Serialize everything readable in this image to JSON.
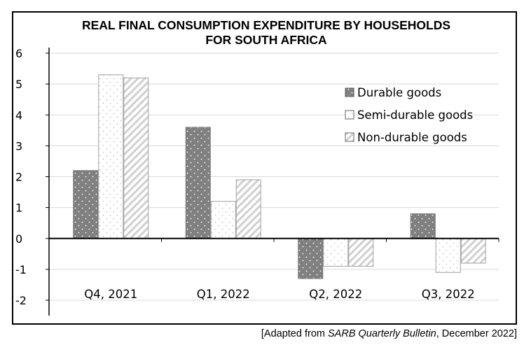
{
  "chart_data": {
    "type": "bar",
    "title": "REAL FINAL CONSUMPTION EXPENDITURE BY HOUSEHOLDS FOR SOUTH AFRICA",
    "title_lines": [
      "REAL FINAL CONSUMPTION EXPENDITURE BY HOUSEHOLDS",
      "FOR SOUTH AFRICA"
    ],
    "xlabel": "",
    "ylabel": "",
    "categories": [
      "Q4, 2021",
      "Q1, 2022",
      "Q2, 2022",
      "Q3, 2022"
    ],
    "series": [
      {
        "name": "Durable goods",
        "values": [
          2.2,
          3.6,
          -1.3,
          0.8
        ],
        "fill": "dark-dotted"
      },
      {
        "name": "Semi-durable goods",
        "values": [
          5.3,
          1.2,
          -0.9,
          -1.1
        ],
        "fill": "light-dotted"
      },
      {
        "name": "Non-durable goods",
        "values": [
          5.2,
          1.9,
          -0.9,
          -0.8
        ],
        "fill": "hatched"
      }
    ],
    "ylim": [
      -2,
      6
    ],
    "yticks": [
      -2,
      -1,
      0,
      1,
      2,
      3,
      4,
      5,
      6
    ],
    "grid": true,
    "legend_position": "top-right"
  },
  "source": {
    "prefix": "[Adapted from ",
    "publication": "SARB Quarterly Bulletin",
    "suffix": ", December 2022]"
  },
  "colors": {
    "durable": "#808080",
    "semi_durable": "#ffffff",
    "non_durable": "#ffffff",
    "gridline": "#d9d9d9",
    "axis": "#000000"
  }
}
